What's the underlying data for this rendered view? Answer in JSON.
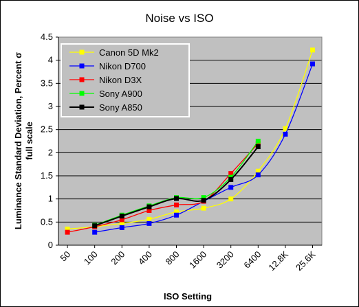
{
  "chart_data": {
    "type": "line",
    "title": "Noise vs ISO",
    "xlabel": "ISO Setting",
    "ylabel": "Luminance Standard Deviation, Percent σ full scale",
    "ylim": [
      0,
      4.5
    ],
    "yticks": [
      "0",
      "0.5",
      "1",
      "1.5",
      "2",
      "2.5",
      "3",
      "3.5",
      "4",
      "4.5"
    ],
    "categories": [
      "50",
      "100",
      "200",
      "400",
      "800",
      "1600",
      "3200",
      "6400",
      "12.8K",
      "25.6K"
    ],
    "grid": true,
    "plot_background": "#c0c0c0",
    "legend_position": "top-left",
    "series": [
      {
        "name": "Canon 5D Mk2",
        "color": "#ffff00",
        "points": [
          [
            50,
            0.35
          ],
          [
            100,
            0.4
          ],
          [
            200,
            0.47
          ],
          [
            400,
            0.56
          ],
          [
            800,
            0.72
          ],
          [
            1600,
            0.8
          ],
          [
            3200,
            1.0
          ],
          [
            6400,
            1.6
          ],
          [
            12800,
            2.52
          ],
          [
            25600,
            4.22
          ]
        ]
      },
      {
        "name": "Nikon D700",
        "color": "#0000ff",
        "points": [
          [
            100,
            0.28
          ],
          [
            200,
            0.38
          ],
          [
            400,
            0.47
          ],
          [
            800,
            0.65
          ],
          [
            1600,
            0.95
          ],
          [
            3200,
            1.25
          ],
          [
            6400,
            1.52
          ],
          [
            12800,
            2.4
          ],
          [
            25600,
            3.92
          ]
        ]
      },
      {
        "name": "Nikon D3X",
        "color": "#ff0000",
        "points": [
          [
            50,
            0.28
          ],
          [
            100,
            0.4
          ],
          [
            200,
            0.55
          ],
          [
            400,
            0.75
          ],
          [
            800,
            0.87
          ],
          [
            1600,
            0.95
          ],
          [
            3200,
            1.55
          ],
          [
            6400,
            2.2
          ]
        ]
      },
      {
        "name": "Sony A900",
        "color": "#00ff00",
        "points": [
          [
            100,
            0.43
          ],
          [
            200,
            0.65
          ],
          [
            400,
            0.85
          ],
          [
            800,
            1.03
          ],
          [
            1600,
            1.03
          ],
          [
            3200,
            1.47
          ],
          [
            6400,
            2.25
          ]
        ]
      },
      {
        "name": "Sony A850",
        "color": "#000000",
        "points": [
          [
            100,
            0.42
          ],
          [
            200,
            0.63
          ],
          [
            400,
            0.83
          ],
          [
            800,
            1.01
          ],
          [
            1600,
            0.97
          ],
          [
            3200,
            1.42
          ],
          [
            6400,
            2.13
          ]
        ]
      }
    ]
  }
}
